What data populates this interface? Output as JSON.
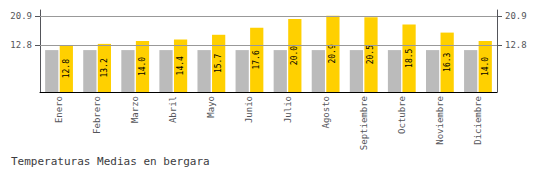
{
  "chart_data": {
    "type": "bar",
    "title": "Temperaturas Medias en bergara",
    "categories": [
      "Enero",
      "Febrero",
      "Marzo",
      "Abril",
      "Mayo",
      "Junio",
      "Julio",
      "Agosto",
      "Septiembre",
      "Octubre",
      "Noviembre",
      "Diciembre"
    ],
    "series": [
      {
        "color": "#BBBBBB",
        "values": [
          11.5,
          11.5,
          11.5,
          11.5,
          11.5,
          11.5,
          11.5,
          11.5,
          11.5,
          11.5,
          11.5,
          11.5
        ]
      },
      {
        "color": "#FFD000",
        "values": [
          12.8,
          13.2,
          14.0,
          14.4,
          15.7,
          17.6,
          20.0,
          20.9,
          20.5,
          18.5,
          16.3,
          14.0
        ],
        "value_labels": [
          "12.8",
          "13.2",
          "14.0",
          "14.4",
          "15.7",
          "17.6",
          "20.0",
          "20.9",
          "20.5",
          "18.5",
          "16.3",
          "14.0"
        ],
        "data_labels": true
      }
    ],
    "ylim": [
      0,
      22.5
    ],
    "yticks": [
      12.8,
      20.9
    ],
    "y2lim": [
      0,
      22.5
    ],
    "y2ticks": [
      12.8,
      20.9
    ],
    "grid": true
  }
}
